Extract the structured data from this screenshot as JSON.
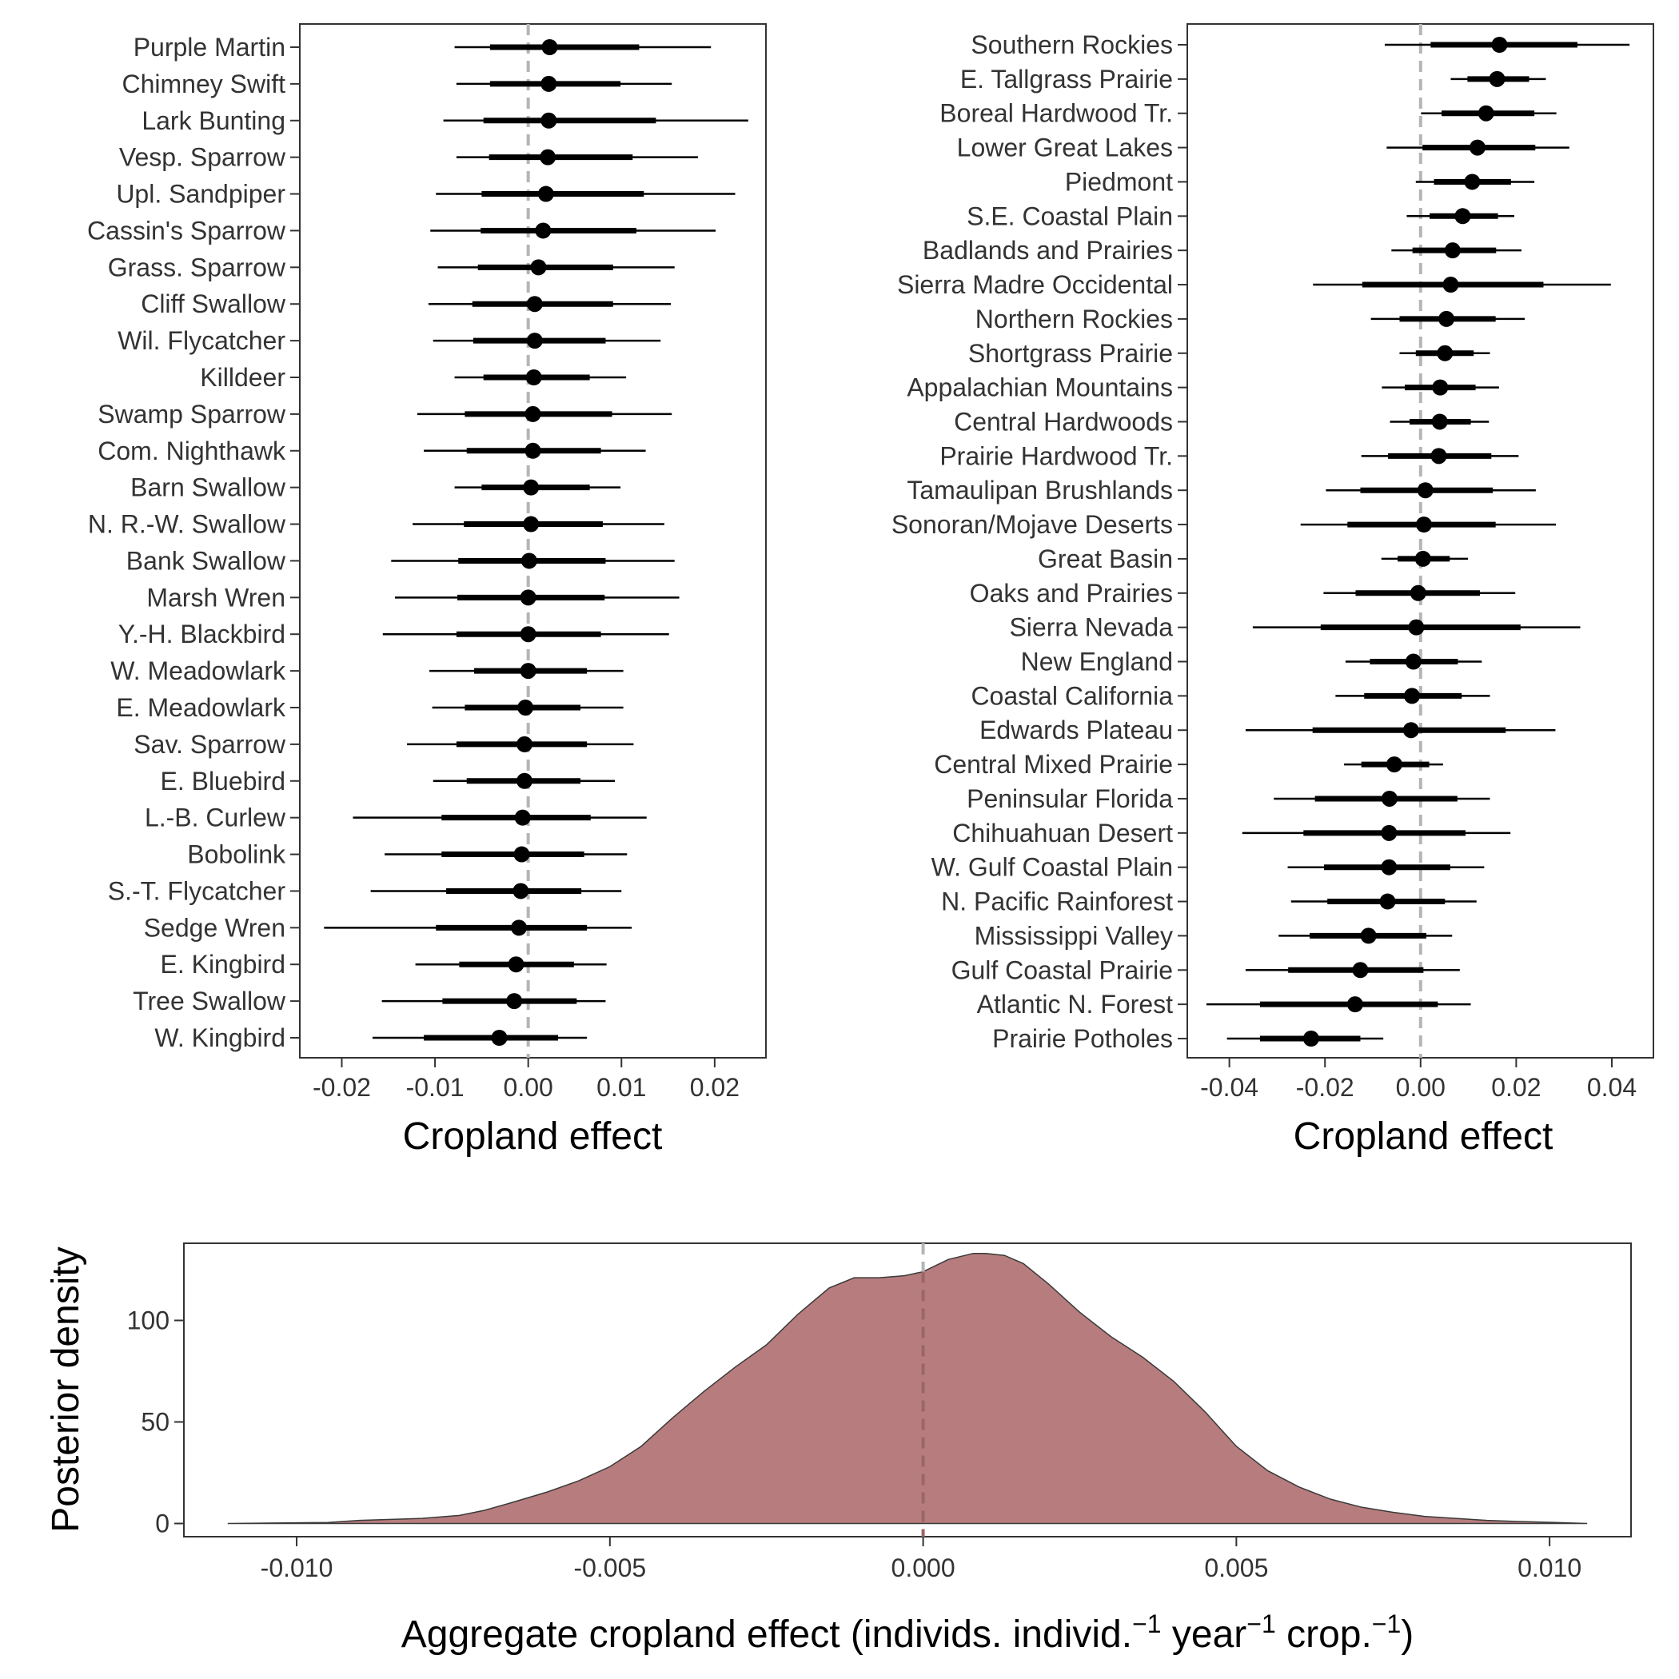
{
  "chart_data": [
    {
      "type": "forest",
      "panel": "species",
      "xlabel": "Cropland effect",
      "ylabel": "",
      "xlim": [
        -0.0245,
        0.0255
      ],
      "xticks": [
        -0.02,
        -0.01,
        0.0,
        0.01,
        0.02
      ],
      "xtick_labels": [
        "-0.02",
        "-0.01",
        "0.00",
        "0.01",
        "0.02"
      ],
      "reference_line": 0,
      "grid": false,
      "rows": [
        {
          "label": "Purple Martin",
          "median": 0.0023,
          "inner": [
            -0.0041,
            0.0119
          ],
          "outer": [
            -0.0079,
            0.0196
          ]
        },
        {
          "label": "Chimney Swift",
          "median": 0.0022,
          "inner": [
            -0.0041,
            0.0099
          ],
          "outer": [
            -0.0077,
            0.0154
          ]
        },
        {
          "label": "Lark Bunting",
          "median": 0.0022,
          "inner": [
            -0.0048,
            0.0137
          ],
          "outer": [
            -0.0091,
            0.0236
          ]
        },
        {
          "label": "Vesp. Sparrow",
          "median": 0.0021,
          "inner": [
            -0.0042,
            0.0112
          ],
          "outer": [
            -0.0077,
            0.0182
          ]
        },
        {
          "label": "Upl. Sandpiper",
          "median": 0.0019,
          "inner": [
            -0.005,
            0.0124
          ],
          "outer": [
            -0.0099,
            0.0222
          ]
        },
        {
          "label": "Cassin's Sparrow",
          "median": 0.0016,
          "inner": [
            -0.0051,
            0.0116
          ],
          "outer": [
            -0.0105,
            0.0201
          ]
        },
        {
          "label": "Grass. Sparrow",
          "median": 0.0011,
          "inner": [
            -0.0054,
            0.0091
          ],
          "outer": [
            -0.0097,
            0.0157
          ]
        },
        {
          "label": "Cliff Swallow",
          "median": 0.0007,
          "inner": [
            -0.006,
            0.0091
          ],
          "outer": [
            -0.0107,
            0.0153
          ]
        },
        {
          "label": "Wil. Flycatcher",
          "median": 0.0007,
          "inner": [
            -0.0059,
            0.0083
          ],
          "outer": [
            -0.0102,
            0.0142
          ]
        },
        {
          "label": "Killdeer",
          "median": 0.0006,
          "inner": [
            -0.0048,
            0.0066
          ],
          "outer": [
            -0.0079,
            0.0105
          ]
        },
        {
          "label": "Swamp Sparrow",
          "median": 0.0005,
          "inner": [
            -0.0068,
            0.009
          ],
          "outer": [
            -0.0119,
            0.0154
          ]
        },
        {
          "label": "Com. Nighthawk",
          "median": 0.0005,
          "inner": [
            -0.0066,
            0.0078
          ],
          "outer": [
            -0.0112,
            0.0126
          ]
        },
        {
          "label": "Barn Swallow",
          "median": 0.0003,
          "inner": [
            -0.005,
            0.0066
          ],
          "outer": [
            -0.0079,
            0.0099
          ]
        },
        {
          "label": "N. R.-W. Swallow",
          "median": 0.0003,
          "inner": [
            -0.0069,
            0.008
          ],
          "outer": [
            -0.0124,
            0.0146
          ]
        },
        {
          "label": "Bank Swallow",
          "median": 0.0001,
          "inner": [
            -0.0075,
            0.0083
          ],
          "outer": [
            -0.0147,
            0.0157
          ]
        },
        {
          "label": "Marsh Wren",
          "median": 0.0,
          "inner": [
            -0.0076,
            0.0082
          ],
          "outer": [
            -0.0143,
            0.0162
          ]
        },
        {
          "label": "Y.-H. Blackbird",
          "median": 0.0,
          "inner": [
            -0.0077,
            0.0078
          ],
          "outer": [
            -0.0156,
            0.0151
          ]
        },
        {
          "label": "W. Meadowlark",
          "median": 0.0,
          "inner": [
            -0.0058,
            0.0063
          ],
          "outer": [
            -0.0106,
            0.0102
          ]
        },
        {
          "label": "E. Meadowlark",
          "median": -0.0003,
          "inner": [
            -0.0068,
            0.0056
          ],
          "outer": [
            -0.0103,
            0.0102
          ]
        },
        {
          "label": "Sav. Sparrow",
          "median": -0.0004,
          "inner": [
            -0.0077,
            0.0063
          ],
          "outer": [
            -0.013,
            0.0113
          ]
        },
        {
          "label": "E. Bluebird",
          "median": -0.0004,
          "inner": [
            -0.0066,
            0.0056
          ],
          "outer": [
            -0.0102,
            0.0093
          ]
        },
        {
          "label": "L.-B. Curlew",
          "median": -0.0006,
          "inner": [
            -0.0093,
            0.0067
          ],
          "outer": [
            -0.0188,
            0.0127
          ]
        },
        {
          "label": "Bobolink",
          "median": -0.0007,
          "inner": [
            -0.0093,
            0.006
          ],
          "outer": [
            -0.0154,
            0.0106
          ]
        },
        {
          "label": "S.-T. Flycatcher",
          "median": -0.0008,
          "inner": [
            -0.0088,
            0.0057
          ],
          "outer": [
            -0.0169,
            0.01
          ]
        },
        {
          "label": "Sedge Wren",
          "median": -0.001,
          "inner": [
            -0.0099,
            0.0063
          ],
          "outer": [
            -0.0219,
            0.0111
          ]
        },
        {
          "label": "E. Kingbird",
          "median": -0.0013,
          "inner": [
            -0.0074,
            0.0049
          ],
          "outer": [
            -0.0121,
            0.0084
          ]
        },
        {
          "label": "Tree Swallow",
          "median": -0.0015,
          "inner": [
            -0.0092,
            0.0052
          ],
          "outer": [
            -0.0157,
            0.0083
          ]
        },
        {
          "label": "W. Kingbird",
          "median": -0.0031,
          "inner": [
            -0.0112,
            0.0032
          ],
          "outer": [
            -0.0167,
            0.0063
          ]
        }
      ]
    },
    {
      "type": "forest",
      "panel": "region",
      "xlabel": "Cropland effect",
      "ylabel": "",
      "xlim": [
        -0.0488,
        0.0487
      ],
      "xticks": [
        -0.04,
        -0.02,
        0.0,
        0.02,
        0.04
      ],
      "xtick_labels": [
        "-0.04",
        "-0.02",
        "0.00",
        "0.02",
        "0.04"
      ],
      "reference_line": 0,
      "grid": false,
      "rows": [
        {
          "label": "Southern Rockies",
          "median": 0.0165,
          "inner": [
            0.0021,
            0.0328
          ],
          "outer": [
            -0.0075,
            0.0437
          ]
        },
        {
          "label": "E. Tallgrass Prairie",
          "median": 0.016,
          "inner": [
            0.0098,
            0.0227
          ],
          "outer": [
            0.0063,
            0.0262
          ]
        },
        {
          "label": "Boreal Hardwood Tr.",
          "median": 0.0137,
          "inner": [
            0.0044,
            0.0238
          ],
          "outer": [
            0.0001,
            0.0284
          ]
        },
        {
          "label": "Lower Great Lakes",
          "median": 0.0119,
          "inner": [
            0.0004,
            0.024
          ],
          "outer": [
            -0.0071,
            0.0311
          ]
        },
        {
          "label": "Piedmont",
          "median": 0.0108,
          "inner": [
            0.0028,
            0.0189
          ],
          "outer": [
            -0.001,
            0.0238
          ]
        },
        {
          "label": "S.E. Coastal Plain",
          "median": 0.0088,
          "inner": [
            0.0019,
            0.0162
          ],
          "outer": [
            -0.0029,
            0.0196
          ]
        },
        {
          "label": "Badlands and Prairies",
          "median": 0.0067,
          "inner": [
            -0.0017,
            0.0158
          ],
          "outer": [
            -0.0061,
            0.0211
          ]
        },
        {
          "label": "Sierra Madre Occidental",
          "median": 0.0063,
          "inner": [
            -0.0122,
            0.0257
          ],
          "outer": [
            -0.0225,
            0.0398
          ]
        },
        {
          "label": "Northern Rockies",
          "median": 0.0054,
          "inner": [
            -0.0044,
            0.0157
          ],
          "outer": [
            -0.0104,
            0.0218
          ]
        },
        {
          "label": "Shortgrass Prairie",
          "median": 0.0051,
          "inner": [
            -0.001,
            0.0111
          ],
          "outer": [
            -0.0044,
            0.0145
          ]
        },
        {
          "label": "Appalachian Mountains",
          "median": 0.0041,
          "inner": [
            -0.0033,
            0.0115
          ],
          "outer": [
            -0.0081,
            0.0164
          ]
        },
        {
          "label": "Central Hardwoods",
          "median": 0.004,
          "inner": [
            -0.0023,
            0.0105
          ],
          "outer": [
            -0.0064,
            0.0143
          ]
        },
        {
          "label": "Prairie Hardwood Tr.",
          "median": 0.0038,
          "inner": [
            -0.0068,
            0.0148
          ],
          "outer": [
            -0.0124,
            0.0205
          ]
        },
        {
          "label": "Tamaulipan Brushlands",
          "median": 0.001,
          "inner": [
            -0.0126,
            0.0151
          ],
          "outer": [
            -0.0198,
            0.0241
          ]
        },
        {
          "label": "Sonoran/Mojave Deserts",
          "median": 0.0007,
          "inner": [
            -0.0153,
            0.0157
          ],
          "outer": [
            -0.0251,
            0.0283
          ]
        },
        {
          "label": "Great Basin",
          "median": 0.0005,
          "inner": [
            -0.0048,
            0.0061
          ],
          "outer": [
            -0.0082,
            0.0099
          ]
        },
        {
          "label": "Oaks and Prairies",
          "median": -0.0005,
          "inner": [
            -0.0136,
            0.0124
          ],
          "outer": [
            -0.0203,
            0.0198
          ]
        },
        {
          "label": "Sierra Nevada",
          "median": -0.0009,
          "inner": [
            -0.0209,
            0.0209
          ],
          "outer": [
            -0.0351,
            0.0334
          ]
        },
        {
          "label": "New England",
          "median": -0.0015,
          "inner": [
            -0.0106,
            0.0078
          ],
          "outer": [
            -0.0157,
            0.0128
          ]
        },
        {
          "label": "Coastal California",
          "median": -0.0018,
          "inner": [
            -0.0118,
            0.0086
          ],
          "outer": [
            -0.0178,
            0.0145
          ]
        },
        {
          "label": "Edwards Plateau",
          "median": -0.002,
          "inner": [
            -0.0226,
            0.0178
          ],
          "outer": [
            -0.0366,
            0.0282
          ]
        },
        {
          "label": "Central Mixed Prairie",
          "median": -0.0055,
          "inner": [
            -0.0124,
            0.0018
          ],
          "outer": [
            -0.016,
            0.0047
          ]
        },
        {
          "label": "Peninsular Florida",
          "median": -0.0065,
          "inner": [
            -0.0221,
            0.0077
          ],
          "outer": [
            -0.0307,
            0.0145
          ]
        },
        {
          "label": "Chihuahuan Desert",
          "median": -0.0066,
          "inner": [
            -0.0245,
            0.0094
          ],
          "outer": [
            -0.0373,
            0.0188
          ]
        },
        {
          "label": "W. Gulf Coastal Plain",
          "median": -0.0066,
          "inner": [
            -0.0202,
            0.0062
          ],
          "outer": [
            -0.0278,
            0.0133
          ]
        },
        {
          "label": "N. Pacific Rainforest",
          "median": -0.0069,
          "inner": [
            -0.0195,
            0.0051
          ],
          "outer": [
            -0.0271,
            0.0117
          ]
        },
        {
          "label": "Mississippi Valley",
          "median": -0.0109,
          "inner": [
            -0.0232,
            0.0012
          ],
          "outer": [
            -0.0297,
            0.0066
          ]
        },
        {
          "label": "Gulf Coastal Prairie",
          "median": -0.0126,
          "inner": [
            -0.0277,
            0.0006
          ],
          "outer": [
            -0.0366,
            0.0082
          ]
        },
        {
          "label": "Atlantic N. Forest",
          "median": -0.0137,
          "inner": [
            -0.0336,
            0.0036
          ],
          "outer": [
            -0.0448,
            0.0105
          ]
        },
        {
          "label": "Prairie Potholes",
          "median": -0.0229,
          "inner": [
            -0.0336,
            -0.0126
          ],
          "outer": [
            -0.0405,
            -0.0078
          ]
        }
      ]
    },
    {
      "type": "area",
      "panel": "aggregate",
      "xlabel_parts": {
        "pre": "Aggregate cropland effect (individs. individ.",
        "sup1": "−1",
        "mid1": " year",
        "sup2": "−1",
        "mid2": " crop.",
        "sup3": "−1",
        "post": ")"
      },
      "ylabel": "Posterior density",
      "xlim": [
        -0.0118,
        0.0113
      ],
      "ylim": [
        -6.5,
        138
      ],
      "xticks": [
        -0.01,
        -0.005,
        0.0,
        0.005,
        0.01
      ],
      "xtick_labels": [
        "-0.010",
        "-0.005",
        "0.000",
        "0.005",
        "0.010"
      ],
      "yticks": [
        0,
        50,
        100
      ],
      "ytick_labels": [
        "0",
        "50",
        "100"
      ],
      "reference_line": 0,
      "fill_color": "#b77d7e",
      "grid": false,
      "x": [
        -0.0111,
        -0.0095,
        -0.009,
        -0.008,
        -0.0074,
        -0.007,
        -0.0066,
        -0.006,
        -0.0055,
        -0.005,
        -0.0045,
        -0.004,
        -0.0035,
        -0.003,
        -0.0025,
        -0.002,
        -0.0015,
        -0.0011,
        -0.0007,
        -0.0003,
        0.0,
        0.0004,
        0.0008,
        0.001,
        0.0013,
        0.0016,
        0.002,
        0.0025,
        0.003,
        0.0035,
        0.004,
        0.0045,
        0.005,
        0.0055,
        0.006,
        0.0065,
        0.007,
        0.0075,
        0.008,
        0.0085,
        0.009,
        0.0095,
        0.0101,
        0.0106
      ],
      "y": [
        0,
        0.5,
        1.5,
        2.5,
        4,
        6.5,
        10,
        15.5,
        21,
        28,
        38,
        52,
        65,
        77,
        88,
        103,
        116,
        121,
        121,
        122,
        124,
        130,
        133,
        133,
        132,
        128,
        118,
        104,
        92,
        82,
        70,
        55,
        38,
        26,
        18,
        12,
        8,
        5.5,
        3.5,
        2.5,
        1.5,
        1,
        0.5,
        0
      ]
    }
  ]
}
